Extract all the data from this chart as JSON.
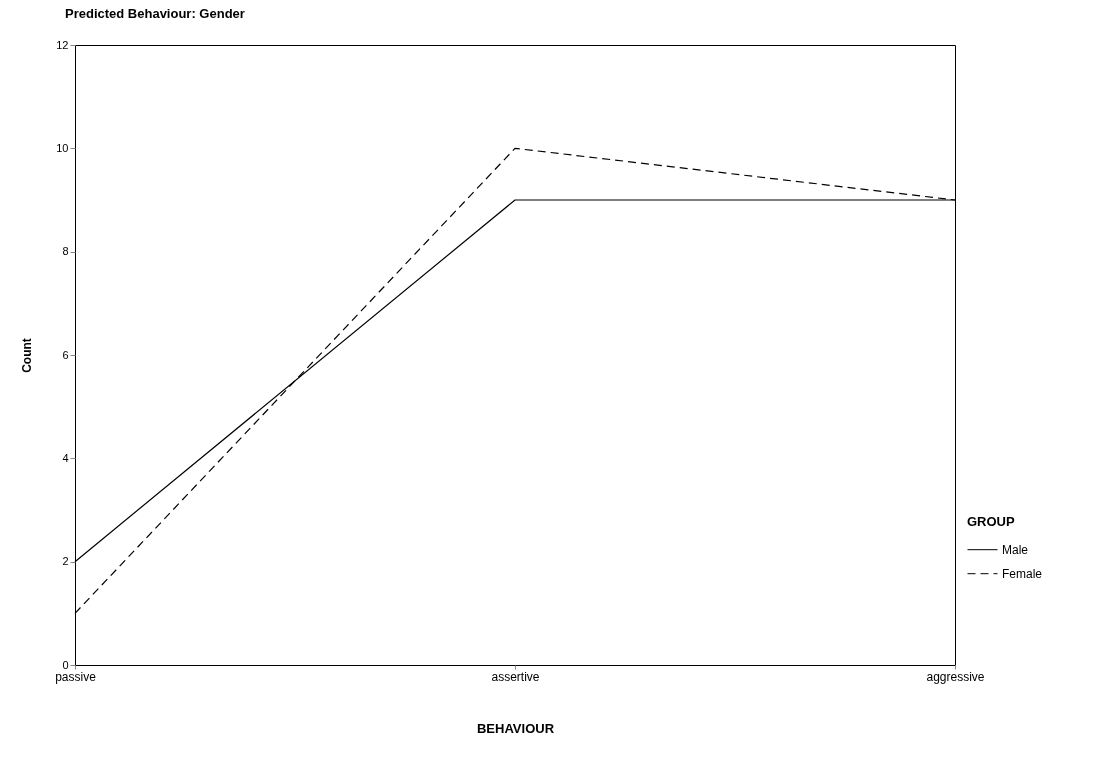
{
  "chart_data": {
    "type": "line",
    "title": "Predicted Behaviour: Gender",
    "xlabel": "BEHAVIOUR",
    "ylabel": "Count",
    "legend_title": "GROUP",
    "categories": [
      "passive",
      "assertive",
      "aggressive"
    ],
    "series": [
      {
        "name": "Male",
        "color": "#000000",
        "line_style": "solid",
        "values": [
          2,
          9,
          9
        ]
      },
      {
        "name": "Female",
        "color": "#000000",
        "line_style": "dashed",
        "values": [
          1,
          10,
          9
        ]
      }
    ],
    "ylim": [
      0,
      12
    ],
    "yticks": [
      0,
      2,
      4,
      6,
      8,
      10,
      12
    ],
    "grid": false,
    "legend": "bottom right",
    "marker": "none"
  }
}
